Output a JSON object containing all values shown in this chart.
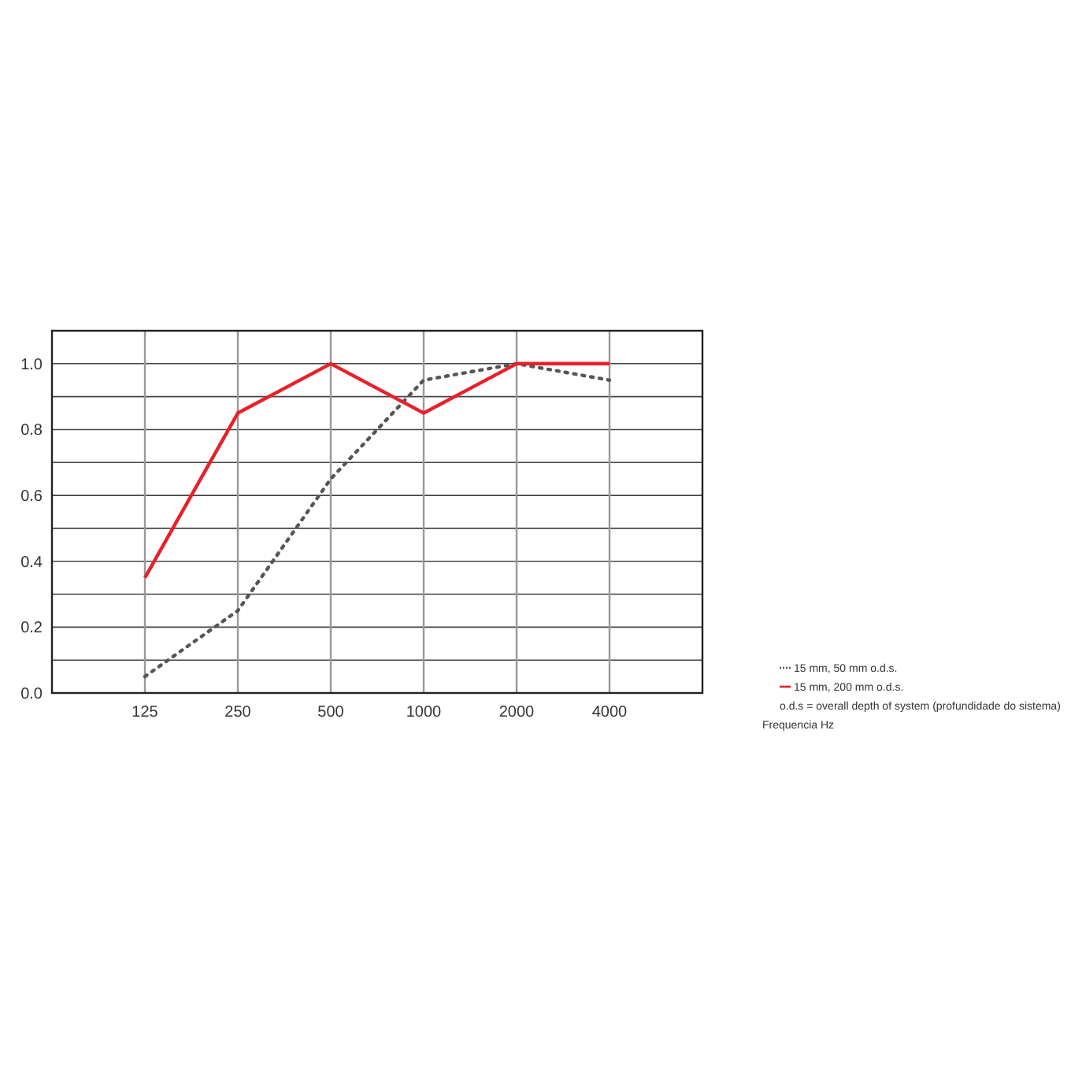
{
  "chart_data": {
    "type": "line",
    "categories": [
      "125",
      "250",
      "500",
      "1000",
      "2000",
      "4000"
    ],
    "series": [
      {
        "name": "15 mm, 50 mm o.d.s.",
        "color": "#555555",
        "line_style": "dotted",
        "values": [
          0.05,
          0.25,
          0.65,
          0.95,
          1.0,
          0.95
        ]
      },
      {
        "name": "15 mm, 200 mm o.d.s.",
        "color": "#e8202a",
        "line_style": "solid",
        "values": [
          0.35,
          0.85,
          1.0,
          0.85,
          1.0,
          1.0
        ]
      }
    ],
    "ylim": [
      0,
      1.1
    ],
    "yticks": [
      {
        "value": 0,
        "label": "0.0"
      },
      {
        "value": 0.1,
        "label": null
      },
      {
        "value": 0.2,
        "label": "0.2"
      },
      {
        "value": 0.3,
        "label": null
      },
      {
        "value": 0.4,
        "label": "0.4"
      },
      {
        "value": 0.5,
        "label": null
      },
      {
        "value": 0.6,
        "label": "0.6"
      },
      {
        "value": 0.7,
        "label": null
      },
      {
        "value": 0.8,
        "label": "0.8"
      },
      {
        "value": 0.9,
        "label": null
      },
      {
        "value": 1.0,
        "label": "1.0"
      }
    ],
    "grid": true,
    "legend": "right",
    "marker": "none",
    "annotations": [
      "o.d.s = overall depth of system (profundidade do sistema)",
      "Frequencia Hz"
    ]
  }
}
